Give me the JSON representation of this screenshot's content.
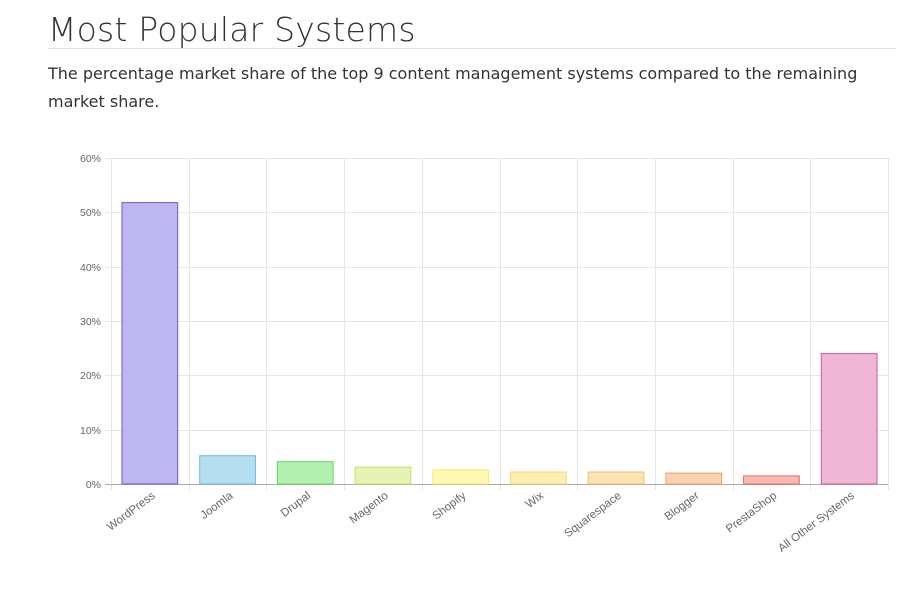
{
  "page": {
    "title": "Most Popular Systems",
    "subtitle": "The percentage market share of the top 9 content management systems compared to the remaining market share."
  },
  "chart_data": {
    "type": "bar",
    "categories": [
      "WordPress",
      "Joomla",
      "Drupal",
      "Magento",
      "Shopify",
      "Wix",
      "Squarespace",
      "Blogger",
      "PrestaShop",
      "All Other Systems"
    ],
    "values": [
      51.8,
      5.2,
      4.1,
      3.1,
      2.6,
      2.2,
      2.2,
      2.0,
      1.5,
      24.0
    ],
    "ylim": [
      0,
      60
    ],
    "yticks": [
      0,
      10,
      20,
      30,
      40,
      50,
      60
    ],
    "ytick_labels": [
      "0%",
      "10%",
      "20%",
      "30%",
      "40%",
      "50%",
      "60%"
    ],
    "grid": true,
    "legend": "none",
    "colors": {
      "fills": [
        "#bdb6f0",
        "#b5def1",
        "#b3f1b3",
        "#e6f4b3",
        "#fdfab3",
        "#fef0b3",
        "#fee4b3",
        "#fdd1b3",
        "#fbb9b3",
        "#f0b6d6"
      ],
      "strokes": [
        "#6a5acd",
        "#6bb8e0",
        "#5fd65f",
        "#c3df6a",
        "#f5ec6a",
        "#f5d86a",
        "#f0c06a",
        "#eba26a",
        "#e66a5f",
        "#cc5aa0"
      ],
      "grid": "#e6e6e6",
      "axis": "#aaaaaa",
      "tick_text": "#666666"
    }
  }
}
